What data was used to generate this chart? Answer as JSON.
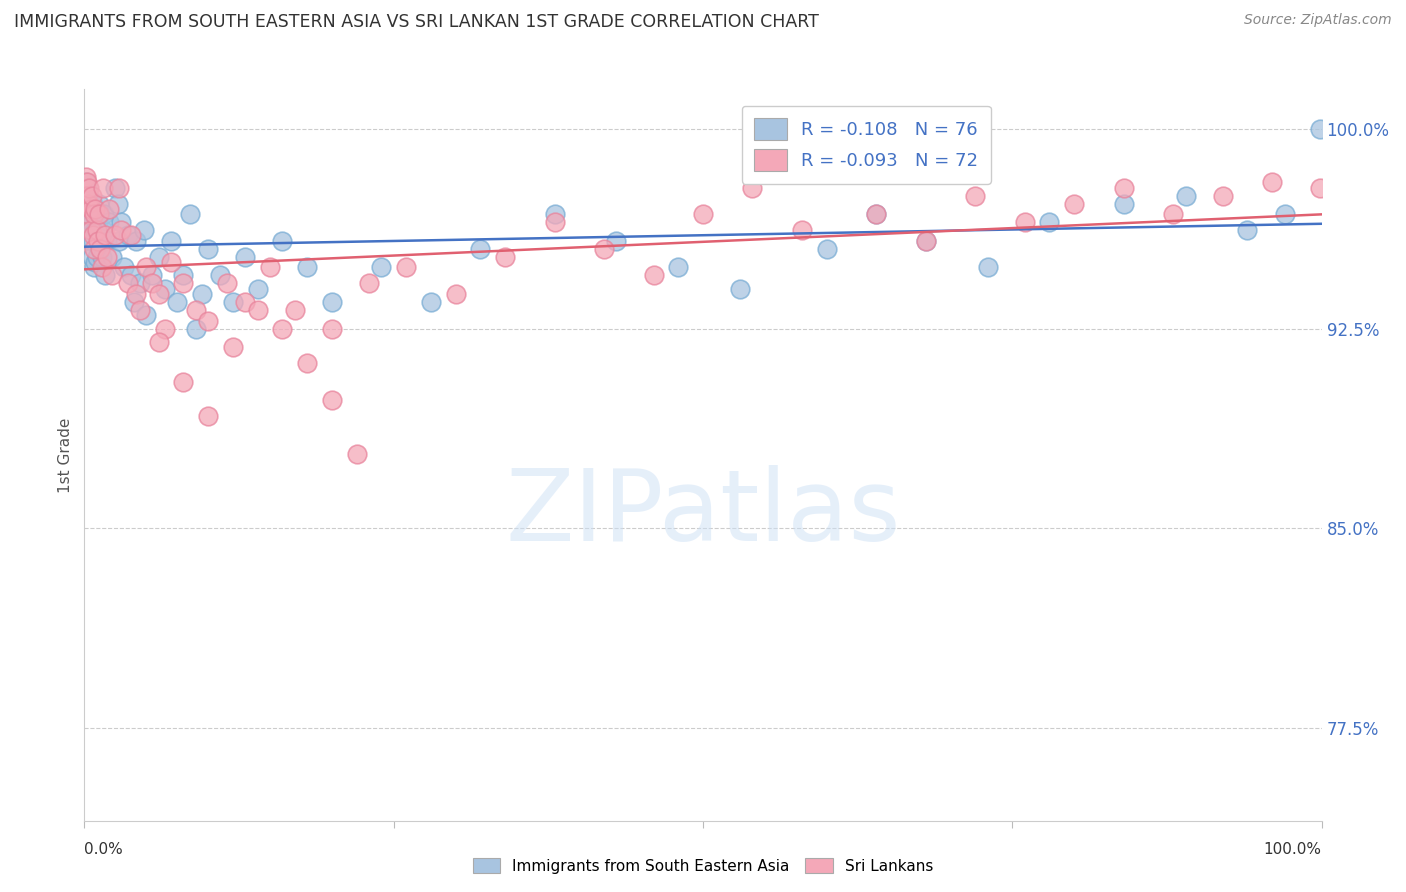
{
  "title": "IMMIGRANTS FROM SOUTH EASTERN ASIA VS SRI LANKAN 1ST GRADE CORRELATION CHART",
  "source": "Source: ZipAtlas.com",
  "ylabel": "1st Grade",
  "watermark": "ZIPatlas",
  "legend_blue_label": "R = -0.108   N = 76",
  "legend_pink_label": "R = -0.093   N = 72",
  "legend_labels_bottom": [
    "Immigrants from South Eastern Asia",
    "Sri Lankans"
  ],
  "right_ytick_values": [
    0.775,
    0.85,
    0.925,
    1.0
  ],
  "right_ytick_labels": [
    "77.5%",
    "85.0%",
    "92.5%",
    "100.0%"
  ],
  "xlim": [
    0.0,
    1.0
  ],
  "ylim": [
    0.74,
    1.015
  ],
  "blue_color": "#a8c4e0",
  "pink_color": "#f4a8b8",
  "blue_edge_color": "#7aadd4",
  "pink_edge_color": "#e8849c",
  "blue_line_color": "#4472c4",
  "pink_line_color": "#e06070",
  "blue_x": [
    0.001,
    0.002,
    0.002,
    0.003,
    0.003,
    0.003,
    0.004,
    0.004,
    0.005,
    0.005,
    0.006,
    0.006,
    0.007,
    0.007,
    0.008,
    0.008,
    0.009,
    0.009,
    0.01,
    0.01,
    0.011,
    0.012,
    0.013,
    0.014,
    0.015,
    0.016,
    0.017,
    0.018,
    0.02,
    0.022,
    0.025,
    0.027,
    0.028,
    0.03,
    0.032,
    0.035,
    0.038,
    0.04,
    0.042,
    0.045,
    0.048,
    0.05,
    0.055,
    0.06,
    0.065,
    0.07,
    0.075,
    0.08,
    0.085,
    0.09,
    0.095,
    0.1,
    0.11,
    0.12,
    0.13,
    0.14,
    0.16,
    0.18,
    0.2,
    0.24,
    0.28,
    0.32,
    0.38,
    0.43,
    0.48,
    0.53,
    0.6,
    0.64,
    0.68,
    0.73,
    0.78,
    0.84,
    0.89,
    0.94,
    0.97,
    0.999
  ],
  "blue_y": [
    0.98,
    0.978,
    0.975,
    0.972,
    0.968,
    0.964,
    0.975,
    0.962,
    0.97,
    0.958,
    0.965,
    0.952,
    0.972,
    0.958,
    0.968,
    0.948,
    0.962,
    0.95,
    0.968,
    0.952,
    0.965,
    0.972,
    0.968,
    0.952,
    0.962,
    0.968,
    0.945,
    0.958,
    0.965,
    0.952,
    0.978,
    0.972,
    0.958,
    0.965,
    0.948,
    0.96,
    0.945,
    0.935,
    0.958,
    0.942,
    0.962,
    0.93,
    0.945,
    0.952,
    0.94,
    0.958,
    0.935,
    0.945,
    0.968,
    0.925,
    0.938,
    0.955,
    0.945,
    0.935,
    0.952,
    0.94,
    0.958,
    0.948,
    0.935,
    0.948,
    0.935,
    0.955,
    0.968,
    0.958,
    0.948,
    0.94,
    0.955,
    0.968,
    0.958,
    0.948,
    0.965,
    0.972,
    0.975,
    0.962,
    0.968,
    1.0
  ],
  "pink_x": [
    0.001,
    0.002,
    0.002,
    0.003,
    0.003,
    0.004,
    0.005,
    0.005,
    0.006,
    0.007,
    0.008,
    0.008,
    0.009,
    0.01,
    0.011,
    0.012,
    0.013,
    0.014,
    0.015,
    0.017,
    0.018,
    0.02,
    0.022,
    0.025,
    0.028,
    0.03,
    0.035,
    0.038,
    0.042,
    0.045,
    0.05,
    0.055,
    0.06,
    0.065,
    0.07,
    0.08,
    0.09,
    0.1,
    0.115,
    0.13,
    0.15,
    0.17,
    0.2,
    0.23,
    0.26,
    0.3,
    0.34,
    0.38,
    0.42,
    0.46,
    0.5,
    0.54,
    0.58,
    0.64,
    0.68,
    0.72,
    0.76,
    0.8,
    0.84,
    0.88,
    0.92,
    0.96,
    0.999,
    0.06,
    0.08,
    0.1,
    0.12,
    0.14,
    0.16,
    0.18,
    0.2,
    0.22
  ],
  "pink_y": [
    0.982,
    0.98,
    0.975,
    0.972,
    0.968,
    0.978,
    0.97,
    0.962,
    0.975,
    0.96,
    0.968,
    0.955,
    0.97,
    0.962,
    0.958,
    0.968,
    0.955,
    0.948,
    0.978,
    0.96,
    0.952,
    0.97,
    0.945,
    0.96,
    0.978,
    0.962,
    0.942,
    0.96,
    0.938,
    0.932,
    0.948,
    0.942,
    0.938,
    0.925,
    0.95,
    0.942,
    0.932,
    0.928,
    0.942,
    0.935,
    0.948,
    0.932,
    0.925,
    0.942,
    0.948,
    0.938,
    0.952,
    0.965,
    0.955,
    0.945,
    0.968,
    0.978,
    0.962,
    0.968,
    0.958,
    0.975,
    0.965,
    0.972,
    0.978,
    0.968,
    0.975,
    0.98,
    0.978,
    0.92,
    0.905,
    0.892,
    0.918,
    0.932,
    0.925,
    0.912,
    0.898,
    0.878
  ]
}
